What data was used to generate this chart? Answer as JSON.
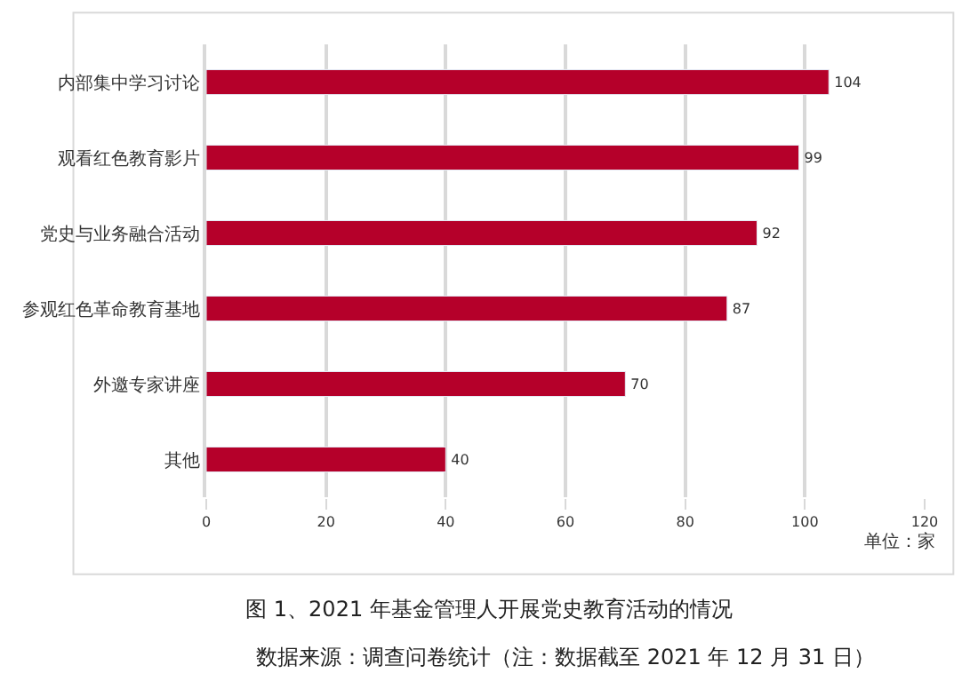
{
  "chart_data": {
    "type": "bar",
    "orientation": "horizontal",
    "title": "图 1、2021 年基金管理人开展党史教育活动的情况",
    "categories": [
      "内部集中学习讨论",
      "观看红色教育影片",
      "党史与业务融合活动",
      "参观红色革命教育基地",
      "外邀专家讲座",
      "其他"
    ],
    "values": [
      104,
      99,
      92,
      87,
      70,
      40
    ],
    "color": "#b5002a",
    "xlim": [
      0,
      120
    ],
    "xticks": [
      0,
      20,
      40,
      60,
      80,
      100,
      120
    ],
    "grid": "x",
    "data_labels": true,
    "legend": false,
    "annotations": [
      "单位：家",
      "数据来源：调查问卷统计（注：数据截至 2021 年 12 月 31 日）"
    ]
  }
}
